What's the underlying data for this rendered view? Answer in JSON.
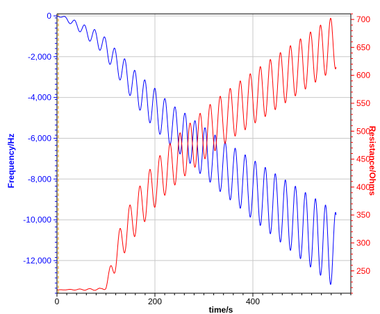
{
  "chart_data": {
    "type": "line",
    "xlabel": "time/s",
    "ylabel_left": "Frequency/Hz",
    "ylabel_right": "Resistance/Ohms",
    "xlim": [
      0,
      600
    ],
    "x_ticks": [
      "0",
      "200",
      "400"
    ],
    "ylim_left": [
      -13600,
      100
    ],
    "y_left_ticks": [
      "0",
      "-2,000",
      "-4,000",
      "-6,000",
      "-8,000",
      "-10,000",
      "-12,000"
    ],
    "ylim_right": [
      210,
      710
    ],
    "y_right_ticks": [
      "250",
      "300",
      "350",
      "400",
      "450",
      "500",
      "550",
      "600",
      "650",
      "700"
    ],
    "grid": true,
    "colors": {
      "frequency": "#0000ff",
      "resistance": "#ff0000",
      "guide": "#ff9900",
      "grid": "#c8c8c8"
    },
    "series": [
      {
        "name": "Frequency/Hz",
        "axis": "left",
        "x": [
          0,
          10,
          20,
          30,
          40,
          50,
          60,
          70,
          80,
          90,
          100,
          110,
          120,
          130,
          140,
          150,
          160,
          170,
          180,
          190,
          200,
          210,
          220,
          230,
          240,
          250,
          260,
          270,
          280,
          290,
          300,
          310,
          320,
          330,
          340,
          350,
          360,
          370,
          380,
          390,
          400,
          410,
          420,
          430,
          440,
          450,
          460,
          470,
          480,
          490,
          500,
          510,
          520,
          530,
          540,
          550,
          560,
          570
        ],
        "trend": [
          0,
          -50,
          -150,
          -300,
          -450,
          -600,
          -800,
          -950,
          -1100,
          -1300,
          -1600,
          -1900,
          -2250,
          -2550,
          -2850,
          -3200,
          -3500,
          -3800,
          -4050,
          -4300,
          -4550,
          -4800,
          -5050,
          -5250,
          -5500,
          -5650,
          -5850,
          -6050,
          -6250,
          -6500,
          -6650,
          -6850,
          -7050,
          -7250,
          -7450,
          -7600,
          -7800,
          -7950,
          -8150,
          -8350,
          -8500,
          -8700,
          -8850,
          -9050,
          -9200,
          -9400,
          -9550,
          -9750,
          -9900,
          -10100,
          -10250,
          -10450,
          -10600,
          -10800,
          -10950,
          -11150,
          -11350,
          -11550
        ],
        "amplitude": [
          0,
          50,
          100,
          150,
          200,
          250,
          300,
          350,
          400,
          450,
          500,
          550,
          600,
          650,
          700,
          750,
          800,
          850,
          900,
          950,
          1000,
          1000,
          1000,
          1050,
          1050,
          1100,
          1100,
          1150,
          1150,
          1200,
          1200,
          1250,
          1250,
          1300,
          1300,
          1350,
          1350,
          1400,
          1400,
          1450,
          1450,
          1500,
          1500,
          1550,
          1550,
          1600,
          1600,
          1650,
          1650,
          1700,
          1700,
          1750,
          1750,
          1800,
          1800,
          1850,
          1850,
          1900
        ],
        "oscillation_period_s": 20.5
      },
      {
        "name": "Resistance/Ohms",
        "axis": "right",
        "x": [
          0,
          90,
          100,
          110,
          120,
          130,
          140,
          150,
          160,
          170,
          180,
          190,
          200,
          210,
          220,
          230,
          240,
          250,
          260,
          270,
          280,
          290,
          300,
          310,
          320,
          330,
          340,
          350,
          360,
          370,
          380,
          390,
          400,
          410,
          420,
          430,
          440,
          450,
          460,
          470,
          480,
          490,
          500,
          510,
          520,
          530,
          540,
          550,
          560,
          570
        ],
        "trend": [
          216,
          217,
          222,
          248,
          275,
          300,
          318,
          335,
          350,
          365,
          378,
          392,
          404,
          416,
          426,
          436,
          445,
          454,
          462,
          470,
          478,
          486,
          494,
          501,
          508,
          515,
          522,
          528,
          535,
          541,
          547,
          553,
          559,
          565,
          571,
          577,
          583,
          589,
          595,
          601,
          607,
          613,
          619,
          625,
          631,
          637,
          643,
          649,
          655,
          660
        ],
        "amplitude": [
          0,
          2,
          5,
          15,
          25,
          30,
          33,
          35,
          37,
          38,
          39,
          40,
          40,
          40,
          41,
          41,
          42,
          42,
          43,
          43,
          44,
          44,
          45,
          45,
          45,
          45,
          46,
          46,
          46,
          46,
          47,
          47,
          47,
          47,
          48,
          48,
          48,
          48,
          48,
          48,
          48,
          48,
          48,
          48,
          48,
          48,
          48,
          48,
          48,
          48
        ],
        "oscillation_period_s": 20.5
      }
    ]
  }
}
